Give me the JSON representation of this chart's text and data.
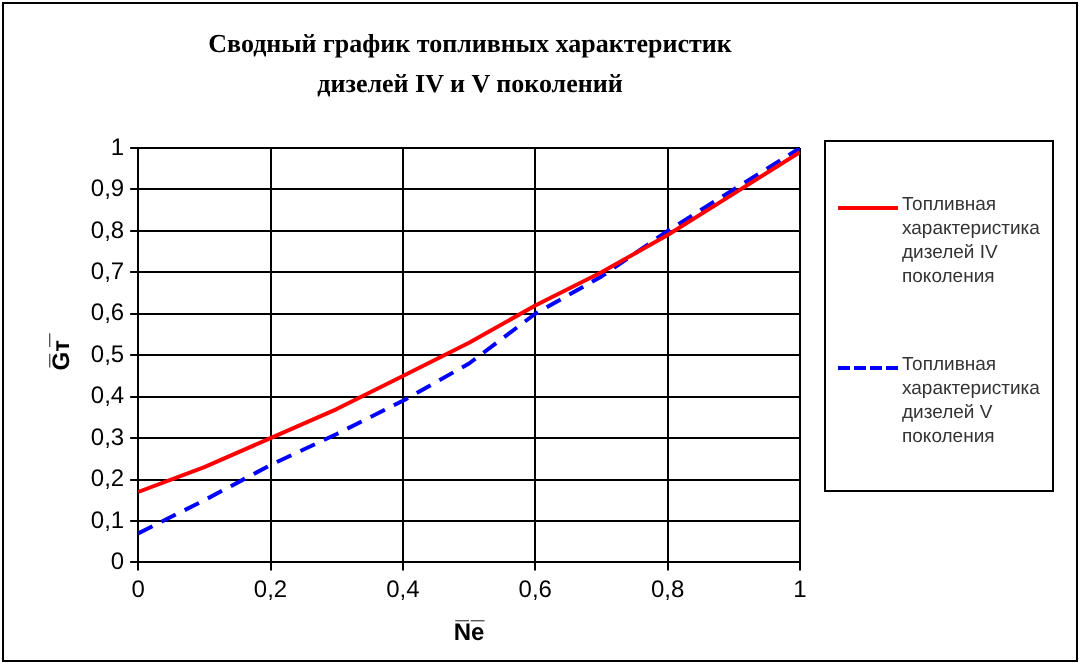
{
  "chart_data": {
    "type": "line",
    "title": "Сводный график топливных характеристик дизелей IV и V  поколений",
    "xlabel": "N̅e̅",
    "ylabel": "G̅т̅",
    "x": [
      0,
      0.1,
      0.2,
      0.3,
      0.4,
      0.5,
      0.6,
      0.7,
      0.8,
      0.9,
      1
    ],
    "series": [
      {
        "name": "Топливная характеристика дизелей IV поколения",
        "color": "#ff0000",
        "line_style": "solid",
        "values": [
          0.17,
          0.23,
          0.3,
          0.37,
          0.45,
          0.53,
          0.62,
          0.7,
          0.79,
          0.89,
          0.99
        ]
      },
      {
        "name": "Топливная характеристика дизелей V поколения",
        "color": "#0000ff",
        "line_style": "dashed",
        "values": [
          0.07,
          0.15,
          0.235,
          0.31,
          0.39,
          0.48,
          0.6,
          0.69,
          0.8,
          0.9,
          1
        ]
      }
    ],
    "xlim": [
      0,
      1
    ],
    "xticks": [
      {
        "value": 0,
        "label": "0"
      },
      {
        "value": 0.2,
        "label": "0,2"
      },
      {
        "value": 0.4,
        "label": "0,4"
      },
      {
        "value": 0.6,
        "label": "0,6"
      },
      {
        "value": 0.8,
        "label": "0,8"
      },
      {
        "value": 1,
        "label": "1"
      }
    ],
    "ylim": [
      0,
      1
    ],
    "yticks": [
      {
        "value": 0,
        "label": "0"
      },
      {
        "value": 0.1,
        "label": "0,1"
      },
      {
        "value": 0.2,
        "label": "0,2"
      },
      {
        "value": 0.3,
        "label": "0,3"
      },
      {
        "value": 0.4,
        "label": "0,4"
      },
      {
        "value": 0.5,
        "label": "0,5"
      },
      {
        "value": 0.6,
        "label": "0,6"
      },
      {
        "value": 0.7,
        "label": "0,7"
      },
      {
        "value": 0.8,
        "label": "0,8"
      },
      {
        "value": 0.9,
        "label": "0,9"
      },
      {
        "value": 1,
        "label": "1"
      }
    ],
    "grid": true,
    "legend": "right",
    "marker": "none"
  }
}
